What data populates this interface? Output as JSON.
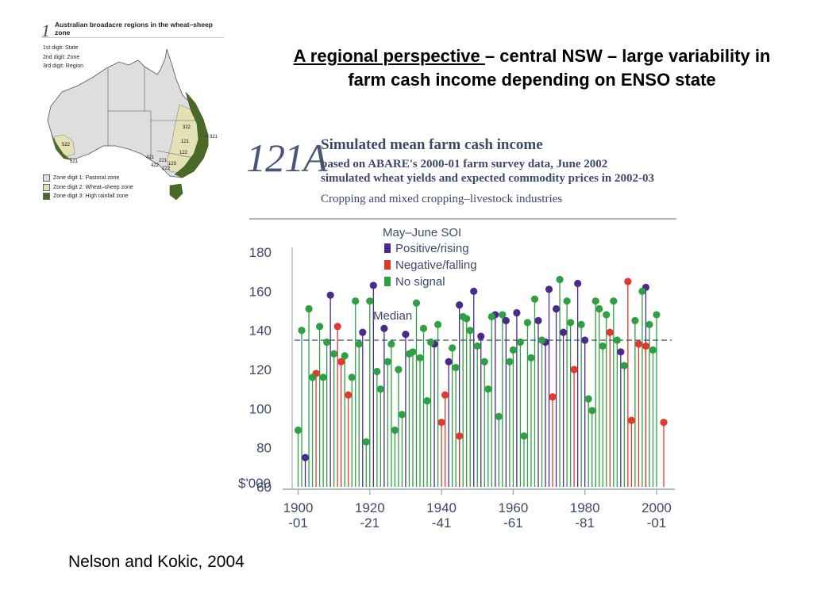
{
  "slide": {
    "title_underlined": "A regional perspective ",
    "title_rest": "– central NSW – large variability in farm cash income depending on ENSO state",
    "caption": "Nelson and Kokic, 2004"
  },
  "map": {
    "figure_number": "1",
    "title": "Australian broadacre regions in the wheat–sheep zone",
    "digits": [
      "1st digit: State",
      "2nd digit: Zone",
      "3rd digit: Region"
    ],
    "legend": [
      {
        "label": "Zone digit 1: Pastoral zone",
        "color": "#dedede"
      },
      {
        "label": "Zone digit 2: Wheat–sheep zone",
        "color": "#e4e2b4"
      },
      {
        "label": "Zone digit 3: High rainfall zone",
        "color": "#4a6b26"
      }
    ],
    "region_labels": [
      "322",
      "321",
      "121",
      "122",
      "123",
      "521",
      "522",
      "421",
      "422",
      "221",
      "222"
    ]
  },
  "chart_data": {
    "type": "scatter",
    "figure_number": "121A",
    "title": "Simulated mean farm cash income",
    "subtitle_lines": [
      "based on ABARE's 2000-01 farm survey data, June 2002",
      "simulated wheat yields and expected commodity prices in 2002-03"
    ],
    "industry_line": "Cropping and mixed cropping–livestock industries",
    "ylabel": "$'000",
    "ylim": [
      60,
      180
    ],
    "yticks": [
      60,
      80,
      100,
      120,
      140,
      160,
      180
    ],
    "xlim": [
      1899,
      2002
    ],
    "xticks": [
      {
        "year": 1900,
        "label": [
          "1900",
          "-01"
        ]
      },
      {
        "year": 1920,
        "label": [
          "1920",
          "-21"
        ]
      },
      {
        "year": 1940,
        "label": [
          "1940",
          "-41"
        ]
      },
      {
        "year": 1960,
        "label": [
          "1960",
          "-61"
        ]
      },
      {
        "year": 1980,
        "label": [
          "1980",
          "-81"
        ]
      },
      {
        "year": 2000,
        "label": [
          "2000",
          "-01"
        ]
      }
    ],
    "median": 135,
    "median_label": "Median",
    "legend_title": "May–June SOI",
    "series": [
      {
        "name": "Positive/rising",
        "color": "#4b2a8c",
        "points": [
          [
            1902,
            75
          ],
          [
            1909,
            158
          ],
          [
            1918,
            139
          ],
          [
            1921,
            163
          ],
          [
            1924,
            141
          ],
          [
            1930,
            138
          ],
          [
            1938,
            133
          ],
          [
            1942,
            124
          ],
          [
            1945,
            153
          ],
          [
            1949,
            160
          ],
          [
            1951,
            137
          ],
          [
            1955,
            148
          ],
          [
            1958,
            145
          ],
          [
            1961,
            149
          ],
          [
            1967,
            145
          ],
          [
            1969,
            134
          ],
          [
            1970,
            161
          ],
          [
            1972,
            151
          ],
          [
            1974,
            139
          ],
          [
            1978,
            164
          ],
          [
            1980,
            135
          ],
          [
            1990,
            129
          ],
          [
            1997,
            162
          ]
        ]
      },
      {
        "name": "Negative/falling",
        "color": "#e03a2e",
        "points": [
          [
            1905,
            118
          ],
          [
            1911,
            142
          ],
          [
            1912,
            124
          ],
          [
            1914,
            107
          ],
          [
            1940,
            93
          ],
          [
            1941,
            107
          ],
          [
            1945,
            86
          ],
          [
            1971,
            106
          ],
          [
            1977,
            120
          ],
          [
            1987,
            139
          ],
          [
            1992,
            165
          ],
          [
            1993,
            94
          ],
          [
            1995,
            133
          ],
          [
            1997,
            132
          ],
          [
            2002,
            93
          ]
        ]
      },
      {
        "name": "No signal",
        "color": "#2ea043",
        "points": [
          [
            1900,
            89
          ],
          [
            1901,
            140
          ],
          [
            1903,
            151
          ],
          [
            1904,
            116
          ],
          [
            1906,
            142
          ],
          [
            1907,
            116
          ],
          [
            1908,
            134
          ],
          [
            1910,
            128
          ],
          [
            1913,
            127
          ],
          [
            1915,
            116
          ],
          [
            1916,
            155
          ],
          [
            1917,
            133
          ],
          [
            1919,
            83
          ],
          [
            1920,
            155
          ],
          [
            1922,
            119
          ],
          [
            1923,
            110
          ],
          [
            1925,
            124
          ],
          [
            1926,
            133
          ],
          [
            1927,
            89
          ],
          [
            1928,
            120
          ],
          [
            1929,
            97
          ],
          [
            1931,
            128
          ],
          [
            1932,
            129
          ],
          [
            1933,
            154
          ],
          [
            1934,
            126
          ],
          [
            1935,
            141
          ],
          [
            1936,
            104
          ],
          [
            1937,
            134
          ],
          [
            1939,
            143
          ],
          [
            1943,
            131
          ],
          [
            1944,
            121
          ],
          [
            1946,
            147
          ],
          [
            1947,
            146
          ],
          [
            1948,
            140
          ],
          [
            1950,
            132
          ],
          [
            1952,
            124
          ],
          [
            1953,
            110
          ],
          [
            1954,
            147
          ],
          [
            1956,
            96
          ],
          [
            1957,
            148
          ],
          [
            1959,
            124
          ],
          [
            1960,
            130
          ],
          [
            1962,
            134
          ],
          [
            1963,
            86
          ],
          [
            1964,
            144
          ],
          [
            1965,
            126
          ],
          [
            1966,
            156
          ],
          [
            1968,
            135
          ],
          [
            1973,
            166
          ],
          [
            1975,
            155
          ],
          [
            1976,
            144
          ],
          [
            1979,
            143
          ],
          [
            1981,
            105
          ],
          [
            1982,
            99
          ],
          [
            1983,
            155
          ],
          [
            1984,
            151
          ],
          [
            1985,
            132
          ],
          [
            1986,
            148
          ],
          [
            1988,
            155
          ],
          [
            1989,
            135
          ],
          [
            1991,
            122
          ],
          [
            1994,
            145
          ],
          [
            1996,
            160
          ],
          [
            1998,
            143
          ],
          [
            1999,
            130
          ],
          [
            2000,
            148
          ]
        ]
      }
    ]
  }
}
